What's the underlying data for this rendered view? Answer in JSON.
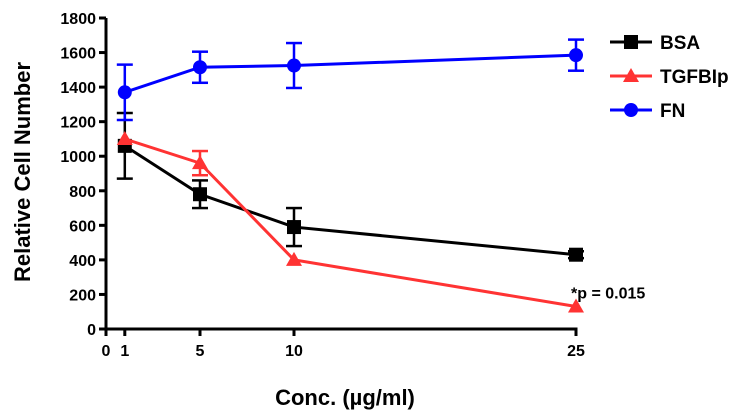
{
  "chart_data": {
    "type": "line",
    "title": "",
    "xlabel": "Conc. (µg/ml)",
    "ylabel": "Relative Cell Number",
    "xlim": [
      0,
      25
    ],
    "ylim": [
      0,
      1800
    ],
    "x_ticks": [
      0,
      1,
      5,
      10,
      25
    ],
    "x_tick_labels": [
      "0",
      "1",
      "5",
      "10",
      "25"
    ],
    "y_ticks": [
      0,
      200,
      400,
      600,
      800,
      1000,
      1200,
      1400,
      1600,
      1800
    ],
    "y_tick_labels": [
      "0",
      "200",
      "400",
      "600",
      "800",
      "1000",
      "1200",
      "1400",
      "1600",
      "1800"
    ],
    "grid": false,
    "legend_position": "top-right",
    "x": [
      1,
      5,
      10,
      25
    ],
    "series": [
      {
        "name": "BSA",
        "color": "#000000",
        "marker": "square",
        "values": [
          1060,
          780,
          590,
          430
        ],
        "errors": [
          190,
          80,
          110,
          20
        ]
      },
      {
        "name": "TGFBIp",
        "color": "#ff3333",
        "marker": "triangle",
        "values": [
          1100,
          960,
          400,
          130
        ],
        "errors": [
          10,
          70,
          10,
          10
        ]
      },
      {
        "name": "FN",
        "color": "#0000ff",
        "marker": "circle",
        "values": [
          1370,
          1515,
          1525,
          1585
        ],
        "errors": [
          160,
          90,
          130,
          90
        ]
      }
    ],
    "annotations": [
      {
        "text": "*p = 0.015",
        "x": 25,
        "y": 130
      }
    ]
  }
}
